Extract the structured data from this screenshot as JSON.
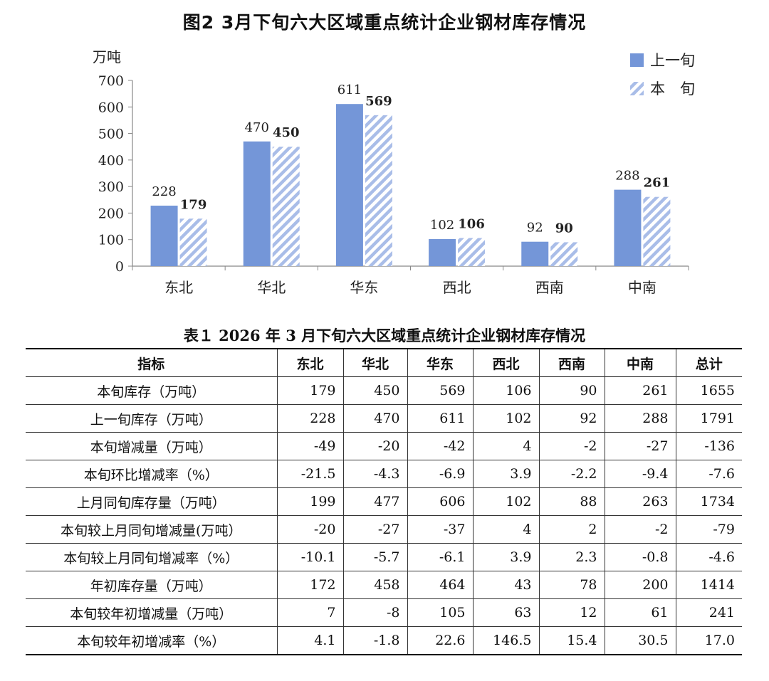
{
  "chart_data": {
    "type": "bar",
    "title": "图2   3月下旬六大区域重点统计企业钢材库存情况",
    "ylabel": "万吨",
    "xlabel": "",
    "ylim": [
      0,
      700
    ],
    "yticks": [
      0,
      100,
      200,
      300,
      400,
      500,
      600,
      700
    ],
    "categories": [
      "东北",
      "华北",
      "华东",
      "西北",
      "西南",
      "中南"
    ],
    "series": [
      {
        "name": "上一旬",
        "values": [
          228,
          470,
          611,
          102,
          92,
          288
        ],
        "color": "#7496d8",
        "pattern": "solid"
      },
      {
        "name": "本　旬",
        "values": [
          179,
          450,
          569,
          106,
          90,
          261
        ],
        "color": "#b3c5ea",
        "pattern": "diagonal-hatch"
      }
    ],
    "legend_position": "top-right",
    "grid": false
  },
  "table": {
    "title": "表１   2026 年 3 月下旬六大区域重点统计企业钢材库存情况",
    "headers": [
      "指标",
      "东北",
      "华北",
      "华东",
      "西北",
      "西南",
      "中南",
      "总计"
    ],
    "rows": [
      {
        "label": "本旬库存（万吨）",
        "values": [
          "179",
          "450",
          "569",
          "106",
          "90",
          "261",
          "1655"
        ]
      },
      {
        "label": "上一旬库存（万吨）",
        "values": [
          "228",
          "470",
          "611",
          "102",
          "92",
          "288",
          "1791"
        ]
      },
      {
        "label": "本旬增减量（万吨）",
        "values": [
          "-49",
          "-20",
          "-42",
          "4",
          "-2",
          "-27",
          "-136"
        ]
      },
      {
        "label": "本旬环比增减率（%）",
        "values": [
          "-21.5",
          "-4.3",
          "-6.9",
          "3.9",
          "-2.2",
          "-9.4",
          "-7.6"
        ]
      },
      {
        "label": "上月同旬库存量（万吨）",
        "values": [
          "199",
          "477",
          "606",
          "102",
          "88",
          "263",
          "1734"
        ]
      },
      {
        "label": "本旬较上月同旬增减量(万吨）",
        "values": [
          "-20",
          "-27",
          "-37",
          "4",
          "2",
          "-2",
          "-79"
        ]
      },
      {
        "label": "本旬较上月同旬增减率（%）",
        "values": [
          "-10.1",
          "-5.7",
          "-6.1",
          "3.9",
          "2.3",
          "-0.8",
          "-4.6"
        ]
      },
      {
        "label": "年初库存量（万吨）",
        "values": [
          "172",
          "458",
          "464",
          "43",
          "78",
          "200",
          "1414"
        ]
      },
      {
        "label": "本旬较年初增减量（万吨）",
        "values": [
          "7",
          "-8",
          "105",
          "63",
          "12",
          "61",
          "241"
        ]
      },
      {
        "label": "本旬较年初增减率（%）",
        "values": [
          "4.1",
          "-1.8",
          "22.6",
          "146.5",
          "15.4",
          "30.5",
          "17.0"
        ]
      }
    ]
  }
}
